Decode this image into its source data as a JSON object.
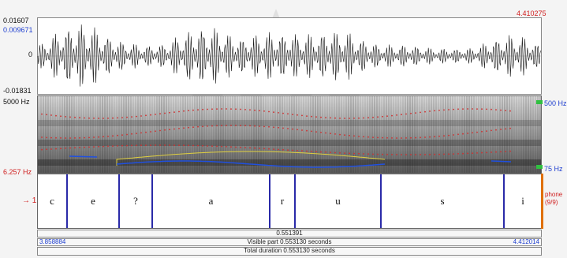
{
  "header": {
    "time_right": "4.410275"
  },
  "waveform": {
    "y_max": "0.01607",
    "y_cursor": "0.009671",
    "y_zero": "0",
    "y_min": "-0.01831"
  },
  "spectrogram": {
    "freq_top": "5000 Hz",
    "freq_bottom": "6.257 Hz",
    "pitch_top": "500 Hz",
    "pitch_bottom": "75 Hz"
  },
  "tier": {
    "number": "1",
    "segments": [
      "c",
      "e",
      "?",
      "a",
      "r",
      "u",
      "s",
      "i"
    ],
    "side_label_1": "phone",
    "side_label_2": "(9/9)"
  },
  "footer": {
    "selection_duration": "0.551391",
    "window_start": "3.858884",
    "window_end": "4.412014",
    "visible_part": "Visible part 0.553130 seconds",
    "total_duration": "Total duration 0.553130 seconds"
  },
  "colors": {
    "pitch": "#2050e0",
    "formant": "#d03030",
    "intensity": "#e0d040",
    "boundary": "#2a2aa8",
    "selection": "#e07000"
  }
}
